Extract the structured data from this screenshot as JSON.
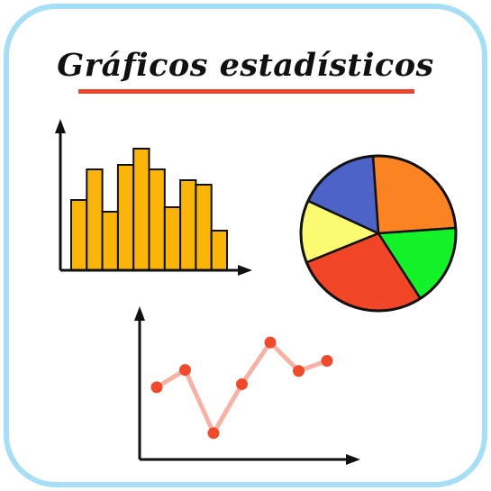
{
  "title": "Gráficos estadísticos",
  "colors": {
    "frame": "#a6def5",
    "underline": "#e8452a",
    "bars": "#fbb50a",
    "line": "#f7b2a6",
    "points": "#ee4a2b",
    "axis": "#111111"
  },
  "histogram": {
    "values": [
      78,
      112,
      65,
      117,
      135,
      112,
      70,
      100,
      95,
      44
    ]
  },
  "pie": {
    "slices": [
      {
        "color": "#fb8322",
        "value": 25
      },
      {
        "color": "#14f22a",
        "value": 17
      },
      {
        "color": "#f04527",
        "value": 28
      },
      {
        "color": "#fcfb72",
        "value": 13
      },
      {
        "color": "#4d63c8",
        "value": 17
      }
    ]
  },
  "line_plot": {
    "values": [
      0.55,
      0.72,
      0.1,
      0.58,
      0.99,
      0.71,
      0.81
    ]
  }
}
